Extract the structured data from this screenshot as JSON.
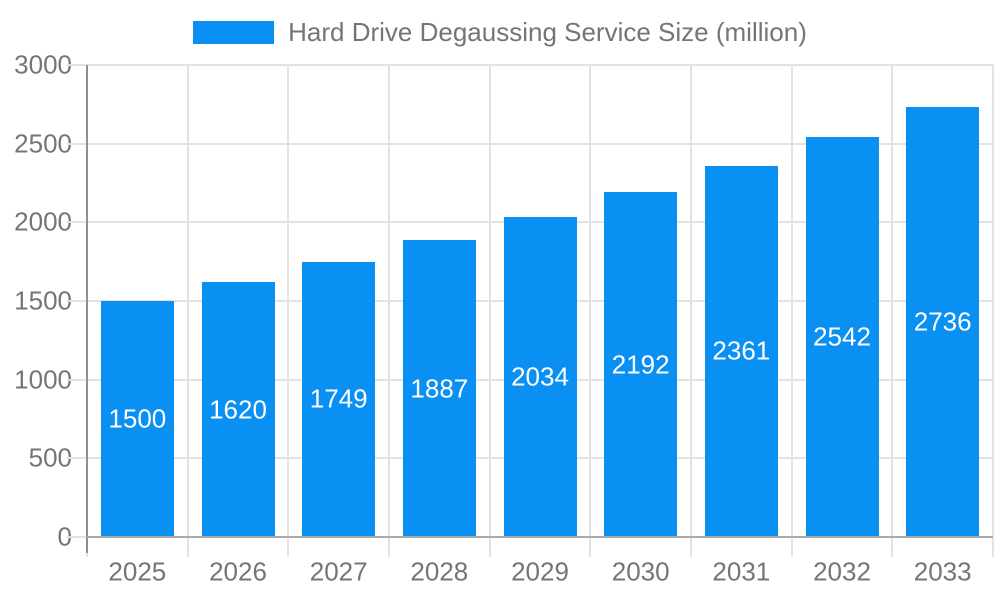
{
  "chart_data": {
    "type": "bar",
    "title": "Hard Drive Degaussing Service Size (million)",
    "categories": [
      "2025",
      "2026",
      "2027",
      "2028",
      "2029",
      "2030",
      "2031",
      "2032",
      "2033"
    ],
    "series": [
      {
        "name": "Hard Drive Degaussing Service Size (million)",
        "values": [
          1500,
          1620,
          1749,
          1887,
          2034,
          2192,
          2361,
          2542,
          2736
        ]
      }
    ],
    "bar_value_labels": [
      "1500",
      "1620",
      "1749",
      "1887",
      "2034",
      "2192",
      "2361",
      "2542",
      "2736"
    ],
    "xlabel": "",
    "ylabel": "",
    "ylim": [
      0,
      3000
    ],
    "yticks": [
      0,
      500,
      1000,
      1500,
      2000,
      2500,
      3000
    ],
    "ytick_labels": [
      "0",
      "500",
      "1000",
      "1500",
      "2000",
      "2500",
      "3000"
    ],
    "grid": true,
    "legend_position": "top-center",
    "legend_entries": [
      "Hard Drive Degaussing Service Size (million)"
    ]
  },
  "colors": {
    "bar": "#0A8FF2",
    "grid": "#E3E3E3",
    "axis": "#ABABAB",
    "text": "#757575",
    "value_label": "#FFFFFF",
    "background": "#FFFFFF"
  }
}
